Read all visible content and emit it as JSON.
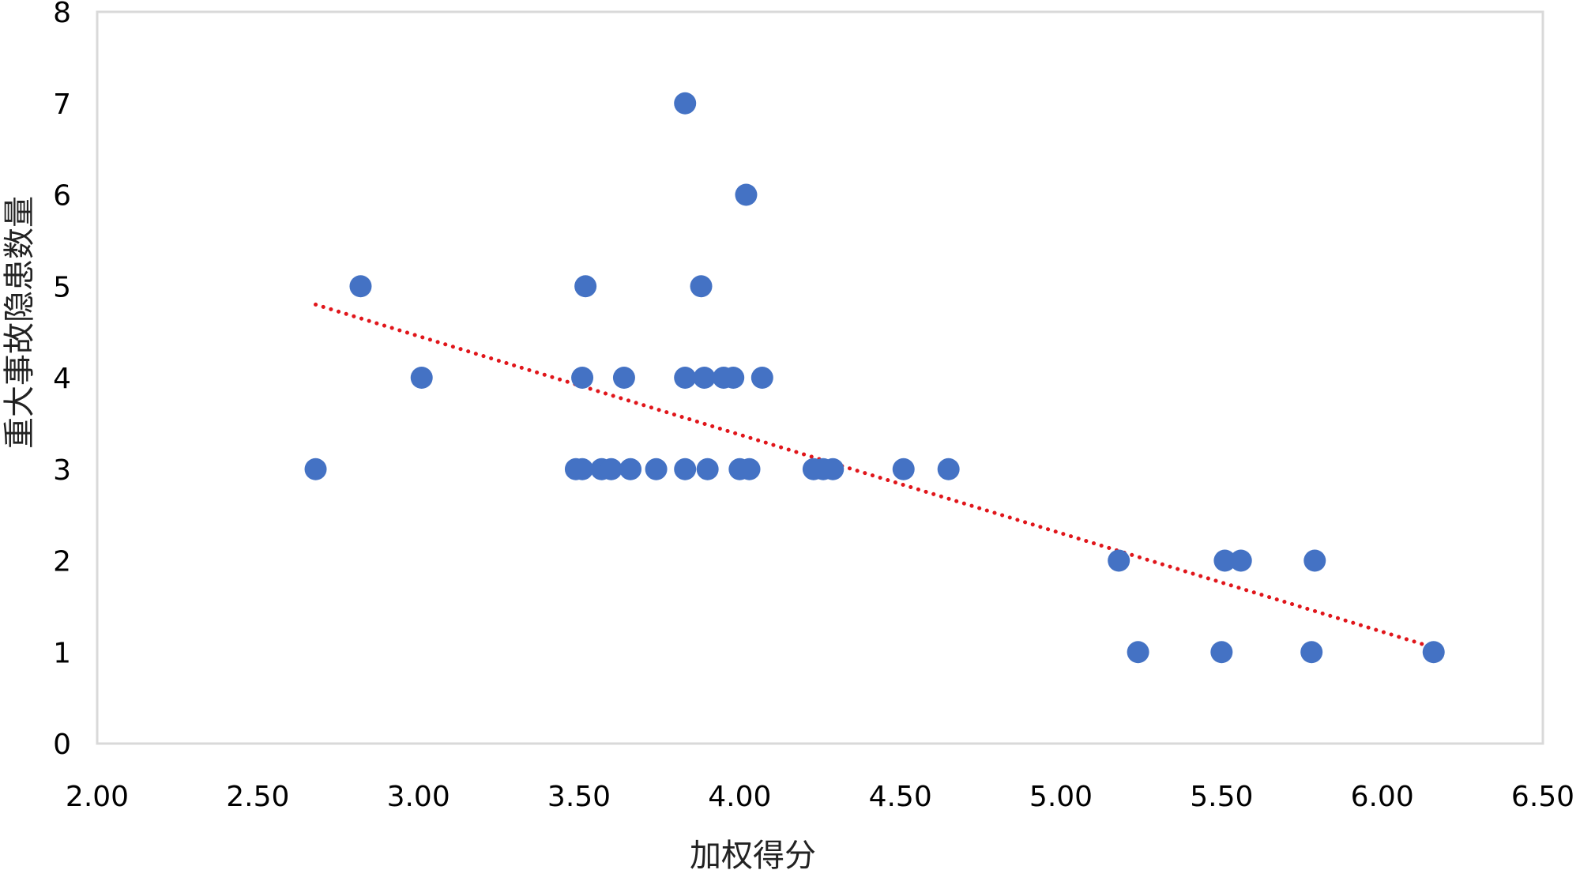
{
  "chart_data": {
    "type": "scatter",
    "title": "",
    "xlabel": "加权得分",
    "ylabel": "重大事故隐患数量",
    "xlim": [
      2.0,
      6.5
    ],
    "ylim": [
      0,
      8
    ],
    "x_ticks": [
      "2.00",
      "2.50",
      "3.00",
      "3.50",
      "4.00",
      "4.50",
      "5.00",
      "5.50",
      "6.00",
      "6.50"
    ],
    "y_ticks": [
      "0",
      "1",
      "2",
      "3",
      "4",
      "5",
      "6",
      "7",
      "8"
    ],
    "grid": false,
    "legend": "none",
    "colors": {
      "points": "#4472C4",
      "trendline": "#E0161B",
      "plot_border": "#D9D9D9"
    },
    "trendline": {
      "type": "linear",
      "style": "dotted",
      "x": [
        2.68,
        6.16
      ],
      "y": [
        4.8,
        1.05
      ]
    },
    "series": [
      {
        "name": "重大事故隐患数量",
        "points": [
          {
            "x": 2.68,
            "y": 3
          },
          {
            "x": 2.82,
            "y": 5
          },
          {
            "x": 3.01,
            "y": 4
          },
          {
            "x": 3.49,
            "y": 3
          },
          {
            "x": 3.51,
            "y": 3
          },
          {
            "x": 3.51,
            "y": 4
          },
          {
            "x": 3.52,
            "y": 5
          },
          {
            "x": 3.57,
            "y": 3
          },
          {
            "x": 3.6,
            "y": 3
          },
          {
            "x": 3.64,
            "y": 4
          },
          {
            "x": 3.66,
            "y": 3
          },
          {
            "x": 3.74,
            "y": 3
          },
          {
            "x": 3.83,
            "y": 3
          },
          {
            "x": 3.83,
            "y": 4
          },
          {
            "x": 3.83,
            "y": 7
          },
          {
            "x": 3.88,
            "y": 5
          },
          {
            "x": 3.89,
            "y": 4
          },
          {
            "x": 3.9,
            "y": 3
          },
          {
            "x": 3.95,
            "y": 4
          },
          {
            "x": 3.98,
            "y": 4
          },
          {
            "x": 4.0,
            "y": 3
          },
          {
            "x": 4.02,
            "y": 6
          },
          {
            "x": 4.03,
            "y": 3
          },
          {
            "x": 4.07,
            "y": 4
          },
          {
            "x": 4.23,
            "y": 3
          },
          {
            "x": 4.26,
            "y": 3
          },
          {
            "x": 4.29,
            "y": 3
          },
          {
            "x": 4.51,
            "y": 3
          },
          {
            "x": 4.65,
            "y": 3
          },
          {
            "x": 5.18,
            "y": 2
          },
          {
            "x": 5.24,
            "y": 1
          },
          {
            "x": 5.5,
            "y": 1
          },
          {
            "x": 5.51,
            "y": 2
          },
          {
            "x": 5.56,
            "y": 2
          },
          {
            "x": 5.78,
            "y": 1
          },
          {
            "x": 5.79,
            "y": 2
          },
          {
            "x": 6.16,
            "y": 1
          }
        ]
      }
    ]
  }
}
